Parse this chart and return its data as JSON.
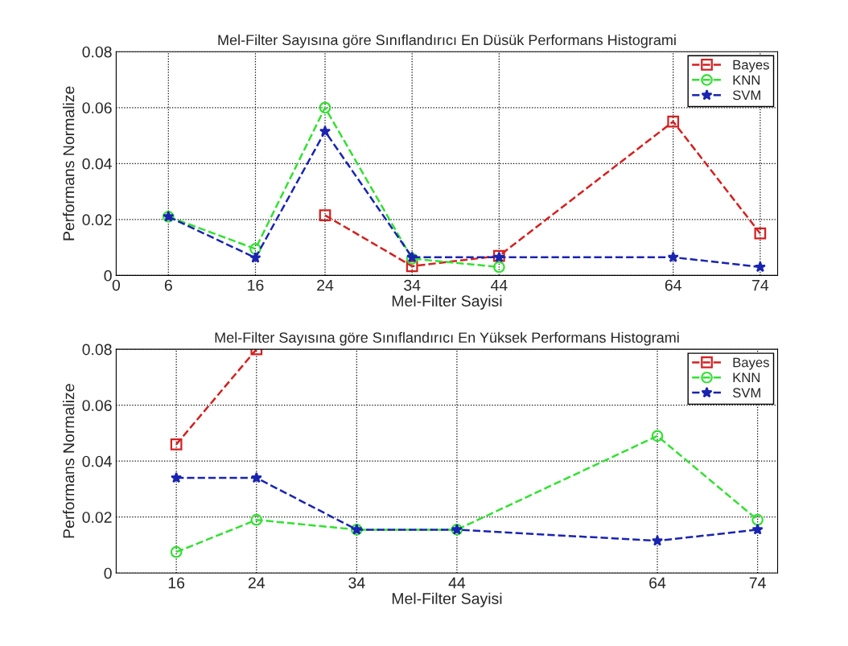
{
  "chart_data": [
    {
      "type": "line",
      "title": "Mel-Filter Sayısına göre Sınıflandırıcı En Düsük Performans Histogrami",
      "xlabel": "Mel-Filter Sayisi",
      "ylabel": "Performans Normalize",
      "xlim": [
        0,
        76
      ],
      "xticks": [
        0,
        6,
        16,
        24,
        34,
        44,
        64,
        74
      ],
      "ylim": [
        0,
        0.08
      ],
      "yticks": [
        0,
        0.02,
        0.04,
        0.06,
        0.08
      ],
      "grid": true,
      "legend": "top right",
      "line_style": "dashed",
      "series": [
        {
          "name": "Bayes",
          "color": "#d42020",
          "marker": "square",
          "x": [
            24,
            34,
            44,
            64,
            74
          ],
          "values": [
            0.0215,
            0.0033,
            0.007,
            0.055,
            0.015
          ]
        },
        {
          "name": "KNN",
          "color": "#33e033",
          "marker": "circle",
          "x": [
            6,
            16,
            24,
            34,
            44
          ],
          "values": [
            0.021,
            0.0095,
            0.06,
            0.006,
            0.003
          ]
        },
        {
          "name": "SVM",
          "color": "#1a24b0",
          "marker": "star",
          "x": [
            6,
            16,
            24,
            34,
            44,
            64,
            74
          ],
          "values": [
            0.021,
            0.0063,
            0.0515,
            0.0065,
            0.0065,
            0.0065,
            0.003
          ]
        }
      ]
    },
    {
      "type": "line",
      "title": "Mel-Filter Sayısına göre Sınıflandırıcı En Yüksek Performans Histogrami",
      "xlabel": "Mel-Filter Sayisi",
      "ylabel": "Performans Normalize",
      "xlim": [
        10,
        76
      ],
      "xticks": [
        16,
        24,
        34,
        44,
        64,
        74
      ],
      "ylim": [
        0,
        0.08
      ],
      "yticks": [
        0,
        0.02,
        0.04,
        0.06,
        0.08
      ],
      "grid": true,
      "legend": "top right",
      "line_style": "dashed",
      "series": [
        {
          "name": "Bayes",
          "color": "#d42020",
          "marker": "square",
          "x": [
            16,
            24
          ],
          "values": [
            0.046,
            0.08
          ]
        },
        {
          "name": "KNN",
          "color": "#33e033",
          "marker": "circle",
          "x": [
            16,
            24,
            34,
            44,
            64,
            74
          ],
          "values": [
            0.0075,
            0.019,
            0.0155,
            0.0155,
            0.049,
            0.019
          ]
        },
        {
          "name": "SVM",
          "color": "#1a24b0",
          "marker": "star",
          "x": [
            16,
            24,
            34,
            44,
            64,
            74
          ],
          "values": [
            0.034,
            0.034,
            0.0155,
            0.0155,
            0.0115,
            0.0155
          ]
        }
      ]
    }
  ]
}
